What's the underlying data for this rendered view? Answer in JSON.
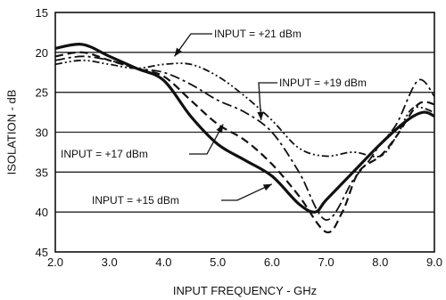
{
  "chart_data": {
    "type": "line",
    "title": "",
    "xlabel": "INPUT FREQUENCY - GHz",
    "ylabel": "ISOLATION - dB",
    "xlim": [
      2.0,
      9.0
    ],
    "ylim": [
      15,
      45
    ],
    "y_inverted": true,
    "grid": true,
    "legend": "none",
    "x_ticks": [
      "2.0",
      "3.0",
      "4.0",
      "5.0",
      "6.0",
      "7.0",
      "8.0",
      "9.0"
    ],
    "y_ticks": [
      "15",
      "20",
      "25",
      "30",
      "35",
      "40",
      "45"
    ],
    "series": [
      {
        "name": "INPUT = +21 dBm",
        "style": "dash-dot-dot",
        "x": [
          2.0,
          2.5,
          3.0,
          3.5,
          4.0,
          4.5,
          5.0,
          5.5,
          6.0,
          6.5,
          7.0,
          7.5,
          8.0,
          8.3,
          8.6,
          9.0
        ],
        "y": [
          21.5,
          21.0,
          21.5,
          22.0,
          21.5,
          21.5,
          23.0,
          25.5,
          28.5,
          32.0,
          33.0,
          32.5,
          33.0,
          30.5,
          27.0,
          27.5
        ]
      },
      {
        "name": "INPUT = +19 dBm",
        "style": "long-dash",
        "x": [
          2.0,
          2.5,
          3.0,
          3.5,
          4.0,
          4.5,
          5.0,
          5.5,
          6.0,
          6.5,
          7.0,
          7.5,
          7.8,
          8.0,
          8.3,
          8.7,
          9.0
        ],
        "y": [
          21.0,
          20.5,
          21.0,
          22.0,
          22.5,
          24.0,
          26.0,
          27.5,
          30.0,
          35.0,
          41.0,
          36.0,
          33.5,
          31.5,
          29.0,
          23.5,
          25.5
        ]
      },
      {
        "name": "INPUT = +17 dBm",
        "style": "dashed",
        "x": [
          2.0,
          2.5,
          3.0,
          3.5,
          4.0,
          4.5,
          5.0,
          5.5,
          6.0,
          6.5,
          7.0,
          7.3,
          7.6,
          8.0,
          8.3,
          8.7,
          9.0
        ],
        "y": [
          20.5,
          20.0,
          21.0,
          22.0,
          23.0,
          26.0,
          29.0,
          31.0,
          34.0,
          38.0,
          42.5,
          40.0,
          35.0,
          33.0,
          30.5,
          26.5,
          26.5
        ]
      },
      {
        "name": "INPUT = +15 dBm",
        "style": "solid",
        "x": [
          2.0,
          2.5,
          3.0,
          3.5,
          4.0,
          4.5,
          5.0,
          5.5,
          6.0,
          6.5,
          6.8,
          7.0,
          7.5,
          8.0,
          8.5,
          8.8,
          9.0
        ],
        "y": [
          19.5,
          19.0,
          20.5,
          22.0,
          23.5,
          28.0,
          31.5,
          33.5,
          35.5,
          39.0,
          40.0,
          38.5,
          35.0,
          31.5,
          28.5,
          27.5,
          28.0
        ]
      }
    ],
    "annotations": [
      {
        "text": "INPUT = +21 dBm",
        "series": 0,
        "arrow_x": 4.2,
        "arrow_y": 20.5
      },
      {
        "text": "INPUT = +19 dBm",
        "series": 1,
        "arrow_x": 5.8,
        "arrow_y": 28.5
      },
      {
        "text": "INPUT = +17 dBm",
        "series": 2,
        "arrow_x": 5.1,
        "arrow_y": 29.0
      },
      {
        "text": "INPUT = +15 dBm",
        "series": 3,
        "arrow_x": 6.0,
        "arrow_y": 36.5
      }
    ]
  }
}
